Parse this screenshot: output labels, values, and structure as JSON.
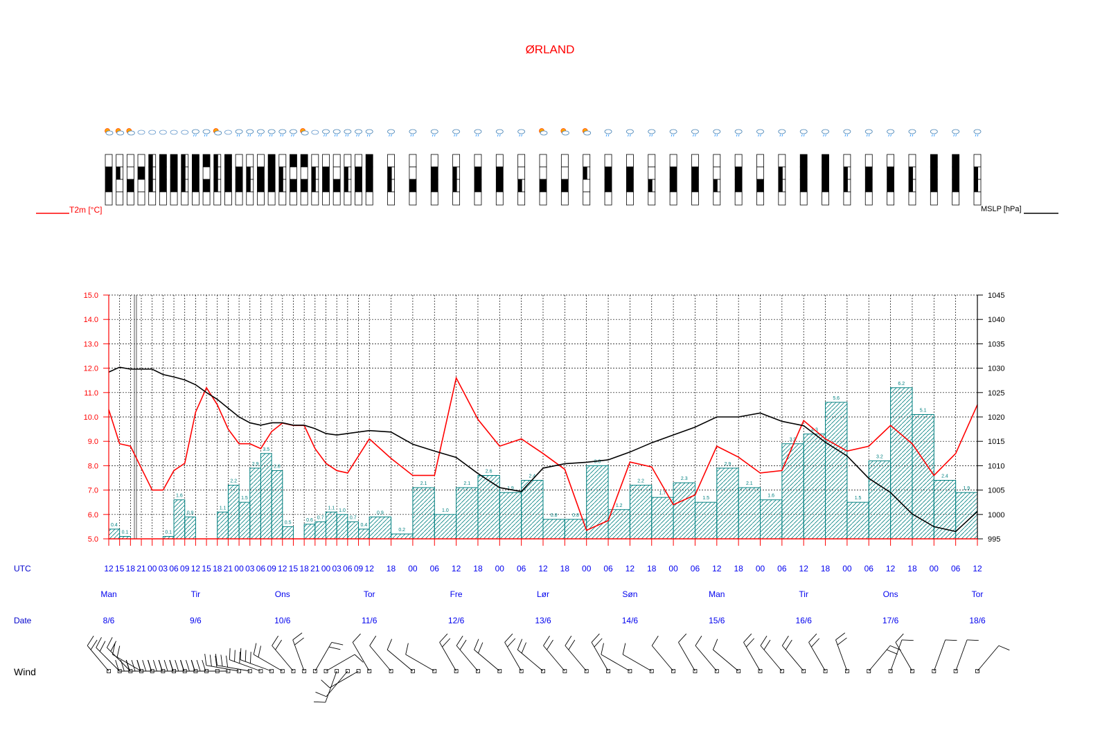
{
  "title": "ØRLAND",
  "legend": {
    "t2m": "T2m [°C]",
    "mslp": "MSLP [hPa]"
  },
  "rows": {
    "utc": "UTC",
    "date": "Date",
    "wind": "Wind"
  },
  "utc_ticks": [
    "12",
    "15",
    "18",
    "21",
    "00",
    "03",
    "06",
    "09",
    "12",
    "15",
    "18",
    "21",
    "00",
    "03",
    "06",
    "09",
    "12",
    "15",
    "18",
    "21",
    "00",
    "03",
    "06",
    "09",
    "12",
    "18",
    "00",
    "06",
    "12",
    "18",
    "00",
    "06",
    "12",
    "18",
    "00",
    "06",
    "12",
    "18",
    "00",
    "06",
    "12",
    "18",
    "00",
    "06",
    "12",
    "18",
    "00",
    "06",
    "12",
    "18",
    "00",
    "06",
    "12"
  ],
  "days": [
    {
      "name": "Man",
      "date": "8/6",
      "idx": 0
    },
    {
      "name": "Tir",
      "date": "9/6",
      "idx": 8
    },
    {
      "name": "Ons",
      "date": "10/6",
      "idx": 16
    },
    {
      "name": "Tor",
      "date": "11/6",
      "idx": 24
    },
    {
      "name": "Fre",
      "date": "12/6",
      "idx": 28
    },
    {
      "name": "Lør",
      "date": "13/6",
      "idx": 32
    },
    {
      "name": "Søn",
      "date": "14/6",
      "idx": 36
    },
    {
      "name": "Man",
      "date": "15/6",
      "idx": 40
    },
    {
      "name": "Tir",
      "date": "16/6",
      "idx": 44
    },
    {
      "name": "Ons",
      "date": "17/6",
      "idx": 48
    },
    {
      "name": "Tor",
      "date": "18/6",
      "idx": 52
    }
  ],
  "colors": {
    "temp": "#ff0000",
    "pressure": "#000000",
    "precip": "#008080",
    "labels": "#0000ee"
  },
  "chart_data": {
    "type": "line",
    "x": [
      "12",
      "15",
      "18",
      "21",
      "00",
      "03",
      "06",
      "09",
      "12",
      "15",
      "18",
      "21",
      "00",
      "03",
      "06",
      "09",
      "12",
      "15",
      "18",
      "21",
      "00",
      "03",
      "06",
      "09",
      "12",
      "18",
      "00",
      "06",
      "12",
      "18",
      "00",
      "06",
      "12",
      "18",
      "00",
      "06",
      "12",
      "18",
      "00",
      "06",
      "12",
      "18",
      "00",
      "06",
      "12",
      "18",
      "00",
      "06",
      "12",
      "18",
      "00",
      "06",
      "12"
    ],
    "temperature": [
      10.3,
      8.9,
      8.8,
      7.9,
      7.0,
      7.0,
      7.8,
      8.1,
      10.2,
      11.2,
      10.5,
      9.5,
      8.9,
      8.9,
      8.7,
      9.4,
      9.75,
      9.65,
      9.65,
      8.7,
      8.1,
      7.8,
      7.7,
      8.4,
      9.1,
      8.3,
      7.6,
      7.6,
      11.6,
      9.9,
      8.8,
      9.1,
      8.5,
      7.85,
      5.35,
      5.75,
      8.15,
      7.95,
      6.4,
      6.8,
      8.8,
      8.35,
      7.7,
      7.8,
      9.85,
      9.1,
      8.6,
      8.8,
      9.65,
      8.9,
      7.6,
      8.5,
      10.5
    ],
    "pressure": [
      1029.2,
      1030.2,
      1029.8,
      1029.8,
      1029.8,
      1028.7,
      1028.2,
      1027.6,
      1026.6,
      1025.0,
      1023.6,
      1021.8,
      1020.0,
      1018.8,
      1018.3,
      1018.8,
      1018.8,
      1018.3,
      1018.3,
      1017.6,
      1016.6,
      1016.3,
      1016.6,
      1016.9,
      1017.2,
      1016.9,
      1014.4,
      1013.0,
      1011.7,
      1008.4,
      1005.5,
      1004.7,
      1009.5,
      1010.4,
      1010.7,
      1011.2,
      1012.8,
      1014.7,
      1016.3,
      1017.9,
      1020.0,
      1020.0,
      1020.8,
      1019.1,
      1018.2,
      1014.8,
      1012.0,
      1007.4,
      1004.5,
      1000.1,
      997.5,
      996.5,
      1000.6
    ],
    "precip": [
      {
        "x0": 0,
        "x1": 1,
        "v": 0.4,
        "label": "0.4"
      },
      {
        "x0": 1,
        "x1": 2,
        "v": 0.1,
        "label": "0.1"
      },
      {
        "x0": 2,
        "x1": 3,
        "v": 0.0,
        "label": ""
      },
      {
        "x0": 3,
        "x1": 4,
        "v": 0.0,
        "label": ""
      },
      {
        "x0": 4,
        "x1": 5,
        "v": 0.0,
        "label": ""
      },
      {
        "x0": 5,
        "x1": 6,
        "v": 0.1,
        "label": "0.1"
      },
      {
        "x0": 6,
        "x1": 7,
        "v": 1.6,
        "label": "1.6"
      },
      {
        "x0": 7,
        "x1": 8,
        "v": 0.9,
        "label": "0.9"
      },
      {
        "x0": 8,
        "x1": 9,
        "v": 0.0,
        "label": ""
      },
      {
        "x0": 9,
        "x1": 10,
        "v": 0.0,
        "label": ""
      },
      {
        "x0": 10,
        "x1": 11,
        "v": 1.1,
        "label": "1.1"
      },
      {
        "x0": 11,
        "x1": 12,
        "v": 2.2,
        "label": "2.2"
      },
      {
        "x0": 12,
        "x1": 13,
        "v": 1.5,
        "label": "1.5"
      },
      {
        "x0": 13,
        "x1": 14,
        "v": 2.9,
        "label": "2.9"
      },
      {
        "x0": 14,
        "x1": 15,
        "v": 3.5,
        "label": "3.5"
      },
      {
        "x0": 15,
        "x1": 16,
        "v": 2.8,
        "label": "2.8"
      },
      {
        "x0": 16,
        "x1": 17,
        "v": 0.5,
        "label": "0.5"
      },
      {
        "x0": 17,
        "x1": 18,
        "v": 0.0,
        "label": ""
      },
      {
        "x0": 18,
        "x1": 19,
        "v": 0.6,
        "label": "0.6"
      },
      {
        "x0": 19,
        "x1": 20,
        "v": 0.7,
        "label": "0.7"
      },
      {
        "x0": 20,
        "x1": 21,
        "v": 1.1,
        "label": "1.1"
      },
      {
        "x0": 21,
        "x1": 22,
        "v": 1.0,
        "label": "1.0"
      },
      {
        "x0": 22,
        "x1": 23,
        "v": 0.7,
        "label": "0.7"
      },
      {
        "x0": 23,
        "x1": 24,
        "v": 0.4,
        "label": "0.4"
      },
      {
        "x0": 24,
        "x1": 26,
        "v": 0.9,
        "label": "0.9"
      },
      {
        "x0": 26,
        "x1": 28,
        "v": 0.2,
        "label": "0.2"
      },
      {
        "x0": 28,
        "x1": 30,
        "v": 2.1,
        "label": "2.1"
      },
      {
        "x0": 30,
        "x1": 32,
        "v": 1.0,
        "label": "1.0"
      },
      {
        "x0": 32,
        "x1": 34,
        "v": 2.1,
        "label": "2.1"
      },
      {
        "x0": 34,
        "x1": 36,
        "v": 2.6,
        "label": "2.6"
      },
      {
        "x0": 36,
        "x1": 38,
        "v": 1.9,
        "label": "1.9"
      },
      {
        "x0": 38,
        "x1": 40,
        "v": 2.4,
        "label": "2.4"
      },
      {
        "x0": 40,
        "x1": 42,
        "v": 0.8,
        "label": "0.8"
      },
      {
        "x0": 42,
        "x1": 44,
        "v": 0.8,
        "label": "0.8"
      },
      {
        "x0": 44,
        "x1": 46,
        "v": 3.0,
        "label": "3.0"
      },
      {
        "x0": 46,
        "x1": 48,
        "v": 1.2,
        "label": "1.2"
      },
      {
        "x0": 48,
        "x1": 50,
        "v": 2.2,
        "label": "2.2"
      },
      {
        "x0": 50,
        "x1": 52,
        "v": 1.7,
        "label": "1.7"
      },
      {
        "x0": 52,
        "x1": 54,
        "v": 2.3,
        "label": "2.3"
      },
      {
        "x0": 54,
        "x1": 56,
        "v": 1.5,
        "label": "1.5"
      },
      {
        "x0": 56,
        "x1": 58,
        "v": 2.9,
        "label": "2.9"
      },
      {
        "x0": 58,
        "x1": 60,
        "v": 2.1,
        "label": "2.1"
      },
      {
        "x0": 60,
        "x1": 62,
        "v": 1.6,
        "label": "1.6"
      },
      {
        "x0": 62,
        "x1": 64,
        "v": 3.9,
        "label": "3.9"
      },
      {
        "x0": 64,
        "x1": 66,
        "v": 4.3,
        "label": "4.3"
      },
      {
        "x0": 66,
        "x1": 68,
        "v": 5.6,
        "label": "5.6"
      },
      {
        "x0": 68,
        "x1": 70,
        "v": 1.5,
        "label": "1.5"
      },
      {
        "x0": 70,
        "x1": 72,
        "v": 3.2,
        "label": "3.2"
      },
      {
        "x0": 72,
        "x1": 74,
        "v": 6.2,
        "label": "6.2"
      },
      {
        "x0": 74,
        "x1": 76,
        "v": 5.1,
        "label": "5.1"
      },
      {
        "x0": 76,
        "x1": 78,
        "v": 2.4,
        "label": "2.4"
      },
      {
        "x0": 78,
        "x1": 80,
        "v": 1.9,
        "label": "1.9"
      }
    ],
    "y_left": {
      "range": [
        5.0,
        15.0
      ],
      "ticks": [
        "5.0",
        "6.0",
        "7.0",
        "8.0",
        "9.0",
        "10.0",
        "11.0",
        "12.0",
        "13.0",
        "14.0",
        "15.0"
      ]
    },
    "y_right": {
      "range": [
        995,
        1045
      ],
      "ticks": [
        "995",
        "1000",
        "1005",
        "1010",
        "1015",
        "1020",
        "1025",
        "1030",
        "1035",
        "1040",
        "1045"
      ]
    },
    "precip_scale_max": 10,
    "grid": true,
    "icons": [
      "partly-sunny",
      "partly-sunny",
      "partly-sunny",
      "cloud",
      "cloud",
      "cloud",
      "cloud",
      "cloud",
      "rain",
      "rain",
      "partly-sunny",
      "cloud",
      "rain",
      "rain",
      "rain",
      "rain",
      "rain",
      "rain",
      "partly-sunny",
      "cloud",
      "rain",
      "rain",
      "rain",
      "rain",
      "rain",
      "rain",
      "rain",
      "rain",
      "rain",
      "rain",
      "rain",
      "rain",
      "partly-sunny",
      "partly-sunny",
      "partly-sunny",
      "rain",
      "rain",
      "rain",
      "rain",
      "rain",
      "rain",
      "rain",
      "rain",
      "rain",
      "rain",
      "rain",
      "rain",
      "rain",
      "rain",
      "rain",
      "rain",
      "rain",
      "rain"
    ],
    "cloud_cover": [
      [
        0,
        1,
        1,
        0
      ],
      [
        0,
        1,
        0,
        0
      ],
      [
        0,
        0,
        1,
        0
      ],
      [
        0,
        1,
        0,
        0
      ],
      [
        1,
        1,
        1,
        0
      ],
      [
        1,
        1,
        1,
        0
      ],
      [
        1,
        1,
        1,
        0
      ],
      [
        1,
        1,
        1,
        0
      ],
      [
        1,
        1,
        1,
        0
      ],
      [
        1,
        0,
        1,
        0
      ],
      [
        1,
        1,
        1,
        0
      ],
      [
        1,
        1,
        1,
        0
      ],
      [
        0,
        1,
        1,
        0
      ],
      [
        0,
        1,
        1,
        0
      ],
      [
        0,
        1,
        1,
        0
      ],
      [
        1,
        1,
        1,
        0
      ],
      [
        0,
        1,
        1,
        0
      ],
      [
        1,
        0,
        1,
        0
      ],
      [
        1,
        0,
        1,
        0
      ],
      [
        0,
        1,
        1,
        0
      ],
      [
        0,
        1,
        1,
        0
      ],
      [
        0,
        0,
        1,
        0
      ],
      [
        0,
        1,
        1,
        0
      ],
      [
        0,
        1,
        1,
        0
      ],
      [
        1,
        1,
        1,
        0
      ],
      [
        0,
        1,
        1,
        0
      ],
      [
        0,
        0,
        1,
        0
      ],
      [
        0,
        1,
        1,
        0
      ],
      [
        0,
        1,
        1,
        0
      ],
      [
        0,
        1,
        1,
        0
      ],
      [
        0,
        1,
        1,
        0
      ],
      [
        0,
        0,
        1,
        0
      ],
      [
        0,
        0,
        1,
        0
      ],
      [
        0,
        0,
        1,
        0
      ],
      [
        0,
        1,
        0,
        0
      ],
      [
        0,
        1,
        1,
        0
      ],
      [
        0,
        1,
        1,
        0
      ],
      [
        0,
        0,
        1,
        0
      ],
      [
        0,
        1,
        1,
        0
      ],
      [
        0,
        1,
        1,
        0
      ],
      [
        0,
        0,
        1,
        0
      ],
      [
        0,
        1,
        1,
        0
      ],
      [
        0,
        0,
        1,
        0
      ],
      [
        0,
        1,
        1,
        0
      ],
      [
        1,
        1,
        1,
        0
      ],
      [
        1,
        1,
        1,
        0
      ],
      [
        0,
        1,
        1,
        0
      ],
      [
        0,
        1,
        1,
        0
      ],
      [
        0,
        1,
        1,
        0
      ],
      [
        0,
        1,
        1,
        0
      ],
      [
        1,
        1,
        1,
        0
      ],
      [
        1,
        1,
        1,
        0
      ],
      [
        0,
        1,
        1,
        0
      ]
    ],
    "wind_dir": [
      320,
      315,
      315,
      300,
      270,
      270,
      270,
      270,
      270,
      270,
      270,
      270,
      280,
      280,
      290,
      290,
      300,
      320,
      340,
      30,
      60,
      200,
      220,
      240,
      330,
      320,
      310,
      300,
      330,
      320,
      310,
      330,
      310,
      320,
      320,
      330,
      300,
      300,
      320,
      330,
      320,
      310,
      330,
      320,
      320,
      330,
      340,
      40,
      20,
      330,
      20,
      20,
      40
    ],
    "wind_barbs": [
      2,
      2,
      2,
      2,
      3,
      3,
      3,
      3,
      3,
      3,
      3,
      3,
      3,
      3,
      3,
      3,
      2,
      2,
      2,
      2,
      1,
      1,
      1,
      1,
      1,
      1,
      1,
      1,
      2,
      2,
      2,
      2,
      2,
      2,
      2,
      2,
      1,
      1,
      1,
      1,
      1,
      1,
      2,
      2,
      2,
      2,
      2,
      2,
      1,
      1,
      1,
      1,
      1
    ]
  }
}
